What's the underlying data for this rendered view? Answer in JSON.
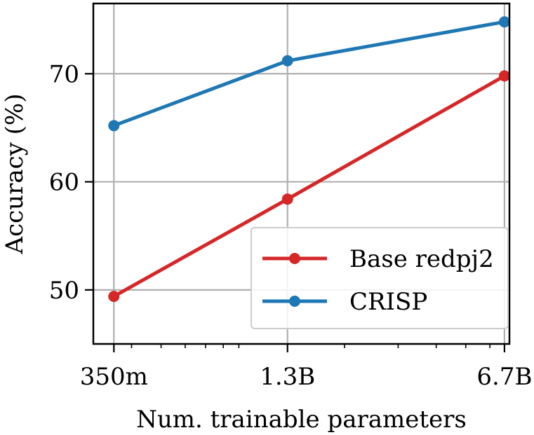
{
  "chart_data": {
    "type": "line",
    "title": "",
    "xlabel": "Num. trainable parameters",
    "ylabel": "Accuracy (%)",
    "x_scale": "log",
    "x": [
      350000000,
      1300000000,
      6700000000
    ],
    "x_tick_labels": [
      "350m",
      "1.3B",
      "6.7B"
    ],
    "y_ticks": [
      50,
      60,
      70
    ],
    "ylim": [
      45,
      76.5
    ],
    "grid": true,
    "legend_position": "lower-right",
    "series": [
      {
        "name": "Base redpj2",
        "values": [
          49.4,
          58.4,
          69.8
        ],
        "color": "#d62728"
      },
      {
        "name": "CRISP",
        "values": [
          65.2,
          71.2,
          74.8
        ],
        "color": "#1f77b4"
      }
    ]
  }
}
